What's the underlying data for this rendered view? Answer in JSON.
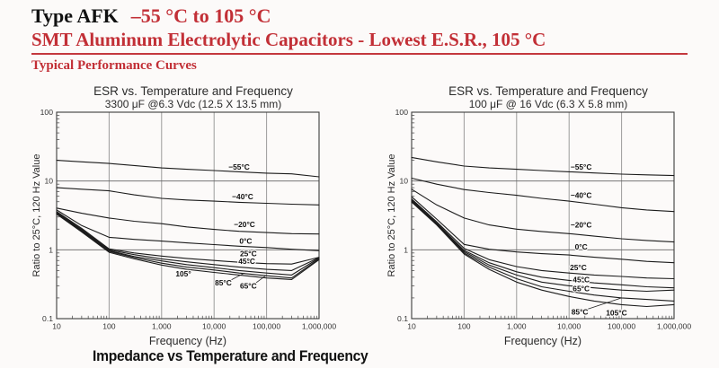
{
  "header": {
    "type_label": "Type AFK",
    "temp_range": "–55 °C to 105 °C",
    "title": "SMT Aluminum Electrolytic Capacitors - Lowest E.S.R., 105 °C",
    "section": "Typical Performance Curves",
    "accent_color": "#c22f36",
    "text_color": "#111111"
  },
  "footer": {
    "caption": "Impedance vs Temperature and Frequency"
  },
  "chart_data": [
    {
      "type": "line",
      "title": "ESR vs. Temperature and Frequency",
      "subtitle": "3300 μF @6.3 Vdc (12.5 X 13.5  mm)",
      "xlabel": "Frequency (Hz)",
      "ylabel": "Ratio to 25°C, 120 Hz Value",
      "xscale": "log",
      "yscale": "log",
      "xlim": [
        10,
        1000000
      ],
      "ylim": [
        0.1,
        100
      ],
      "grid": "decade",
      "legend_position": "inline-labels",
      "x_tick_values": [
        10,
        100,
        1000,
        10000,
        100000,
        1000000
      ],
      "x_tick_labels": [
        "10",
        "100",
        "1,000",
        "10,000",
        "100,000",
        "1,000,000"
      ],
      "y_tick_values": [
        100,
        10,
        1,
        0.1
      ],
      "y_tick_labels": [
        "100",
        "10",
        "1",
        "0.1"
      ],
      "x": [
        10,
        30,
        100,
        300,
        1000,
        3000,
        10000,
        30000,
        100000,
        300000,
        1000000
      ],
      "series": [
        {
          "name": "−55°C",
          "values": [
            20,
            19,
            18,
            16.8,
            15.5,
            14.8,
            14.2,
            13.6,
            13,
            12.7,
            11.5
          ],
          "label": {
            "x": 30000,
            "y": 16
          }
        },
        {
          "name": "−40°C",
          "values": [
            8,
            7.6,
            7.2,
            6.3,
            5.6,
            5.3,
            5.1,
            4.9,
            4.75,
            4.6,
            4.5
          ],
          "label": {
            "x": 35000,
            "y": 5.9
          }
        },
        {
          "name": "−20°C",
          "values": [
            4.05,
            3.4,
            2.9,
            2.6,
            2.4,
            2.15,
            1.98,
            1.86,
            1.78,
            1.72,
            1.7
          ],
          "label": {
            "x": 38000,
            "y": 2.35
          }
        },
        {
          "name": "0°C",
          "values": [
            3.8,
            2.25,
            1.52,
            1.42,
            1.34,
            1.26,
            1.19,
            1.13,
            1.08,
            1.02,
            0.97
          ],
          "label": {
            "x": 40000,
            "y": 1.35
          }
        },
        {
          "name": "25°C",
          "values": [
            3.6,
            2.05,
            1.03,
            0.9,
            0.81,
            0.75,
            0.7,
            0.66,
            0.63,
            0.62,
            0.78
          ],
          "label": {
            "x": 45000,
            "y": 0.88
          }
        },
        {
          "name": "45°C",
          "values": [
            3.5,
            1.98,
            1.0,
            0.85,
            0.74,
            0.67,
            0.61,
            0.56,
            0.52,
            0.5,
            0.77
          ],
          "label": {
            "x": 42000,
            "y": 0.68
          }
        },
        {
          "name": "65°C",
          "values": [
            3.45,
            1.92,
            0.97,
            0.8,
            0.69,
            0.61,
            0.55,
            0.5,
            0.46,
            0.43,
            0.76
          ],
          "label": {
            "x": 45000,
            "y": 0.3
          },
          "leader": {
            "x": 100000,
            "y": 0.43
          }
        },
        {
          "name": "85°C",
          "values": [
            3.38,
            1.87,
            0.95,
            0.77,
            0.64,
            0.56,
            0.51,
            0.46,
            0.42,
            0.39,
            0.74
          ],
          "label": {
            "x": 15000,
            "y": 0.33
          },
          "leader": {
            "x": 38000,
            "y": 0.46
          }
        },
        {
          "name": "105°",
          "values": [
            3.3,
            1.82,
            0.92,
            0.74,
            0.6,
            0.52,
            0.47,
            0.43,
            0.39,
            0.37,
            0.72
          ],
          "label": {
            "x": 2600,
            "y": 0.45
          }
        }
      ]
    },
    {
      "type": "line",
      "title": "ESR vs. Temperature and Frequency",
      "subtitle": "100 μF @ 16 Vdc (6.3 X 5.8  mm)",
      "xlabel": "Frequency (Hz)",
      "ylabel": "Ratio to 25°C, 120 Hz Value",
      "xscale": "log",
      "yscale": "log",
      "xlim": [
        10,
        1000000
      ],
      "ylim": [
        0.1,
        100
      ],
      "grid": "decade",
      "legend_position": "inline-labels",
      "x_tick_values": [
        10,
        100,
        1000,
        10000,
        100000,
        1000000
      ],
      "x_tick_labels": [
        "10",
        "100",
        "1,000",
        "10,000",
        "100,000",
        "1,000,000"
      ],
      "y_tick_values": [
        100,
        10,
        1,
        0.1
      ],
      "y_tick_labels": [
        "100",
        "10",
        "1",
        "0.1"
      ],
      "x": [
        10,
        30,
        100,
        300,
        1000,
        3000,
        10000,
        30000,
        100000,
        300000,
        1000000
      ],
      "series": [
        {
          "name": "−55°C",
          "values": [
            22,
            19,
            16.5,
            15.5,
            14.8,
            14.2,
            13.6,
            13.1,
            12.6,
            12.3,
            12
          ],
          "label": {
            "x": 17000,
            "y": 16
          }
        },
        {
          "name": "−40°C",
          "values": [
            11,
            9,
            7.5,
            6.8,
            6.2,
            5.6,
            5.1,
            4.6,
            4.1,
            3.8,
            3.6
          ],
          "label": {
            "x": 17000,
            "y": 6.2
          }
        },
        {
          "name": "−20°C",
          "values": [
            7.6,
            4.5,
            2.9,
            2.3,
            2.0,
            1.85,
            1.72,
            1.58,
            1.45,
            1.37,
            1.3
          ],
          "label": {
            "x": 17000,
            "y": 2.3
          }
        },
        {
          "name": "0°C",
          "values": [
            5.9,
            2.8,
            1.2,
            1.02,
            0.93,
            0.88,
            0.84,
            0.78,
            0.73,
            0.68,
            0.65
          ],
          "label": {
            "x": 17000,
            "y": 1.1
          }
        },
        {
          "name": "25°C",
          "values": [
            5.5,
            2.55,
            1.05,
            0.72,
            0.57,
            0.5,
            0.46,
            0.43,
            0.41,
            0.39,
            0.38
          ],
          "label": {
            "x": 15000,
            "y": 0.55
          }
        },
        {
          "name": "45°C",
          "values": [
            5.3,
            2.45,
            0.98,
            0.65,
            0.48,
            0.4,
            0.36,
            0.33,
            0.31,
            0.29,
            0.28
          ],
          "label": {
            "x": 17000,
            "y": 0.37
          }
        },
        {
          "name": "65°C",
          "values": [
            5.15,
            2.4,
            0.94,
            0.6,
            0.43,
            0.34,
            0.3,
            0.28,
            0.26,
            0.25,
            0.26
          ],
          "label": {
            "x": 17000,
            "y": 0.275
          }
        },
        {
          "name": "85°C",
          "values": [
            5.05,
            2.35,
            0.9,
            0.56,
            0.38,
            0.29,
            0.25,
            0.22,
            0.2,
            0.19,
            0.18
          ],
          "label": {
            "x": 16000,
            "y": 0.125
          },
          "leader": {
            "x": 100000,
            "y": 0.2
          }
        },
        {
          "name": "105°C",
          "values": [
            4.95,
            2.3,
            0.87,
            0.52,
            0.34,
            0.26,
            0.21,
            0.18,
            0.16,
            0.15,
            0.16
          ],
          "label": {
            "x": 80000,
            "y": 0.122
          }
        }
      ]
    }
  ]
}
